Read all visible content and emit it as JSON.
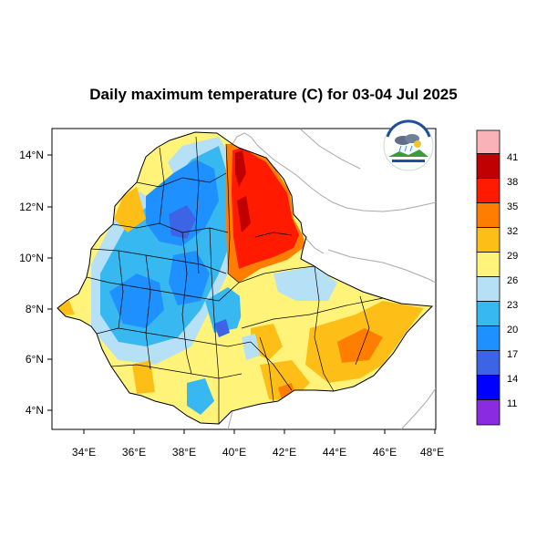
{
  "title": "Daily maximum temperature (C) for 03-04 Jul 2025",
  "axes": {
    "lon_ticks": [
      "34°E",
      "36°E",
      "38°E",
      "40°E",
      "42°E",
      "44°E",
      "46°E",
      "48°E"
    ],
    "lat_ticks": [
      "14°N",
      "12°N",
      "10°N",
      "8°N",
      "6°N",
      "4°N"
    ]
  },
  "colorbar": {
    "labels": [
      "41",
      "38",
      "35",
      "32",
      "29",
      "26",
      "23",
      "20",
      "17",
      "14",
      "11"
    ],
    "colors": [
      "#f9b2b8",
      "#c00000",
      "#ff1a00",
      "#ff7d00",
      "#fdbf17",
      "#fff37a",
      "#b5e0f5",
      "#37b8f0",
      "#1e90ff",
      "#3d63e6",
      "#0000ff",
      "#8a2be2"
    ]
  },
  "logo": {
    "name": "ethiopian-meteorology-institute-logo",
    "text": "Ethiopian Meteorology Institute"
  }
}
